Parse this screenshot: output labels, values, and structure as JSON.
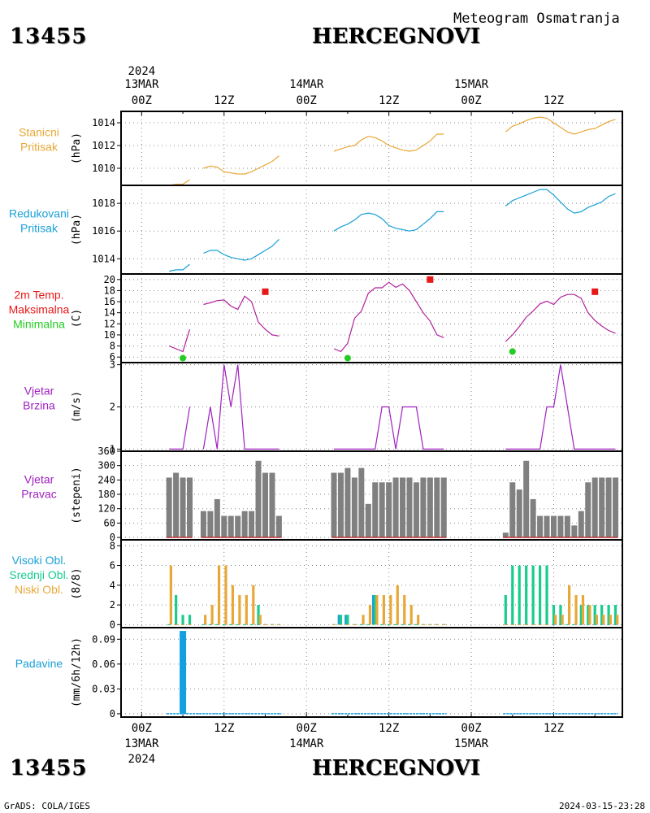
{
  "header": {
    "station_id": "13455",
    "station_name": "HERCEGNOVI",
    "meteogram_title": "Meteogram Osmatranja"
  },
  "footer": {
    "station_id": "13455",
    "station_name": "HERCEGNOVI",
    "credit": "GrADS: COLA/IGES",
    "timestamp": "2024-03-15-23:28"
  },
  "time_axis": {
    "year": "2024",
    "major": [
      {
        "date": "13MAR",
        "hour": "00Z",
        "t": 0
      },
      {
        "date": "14MAR",
        "hour": "00Z",
        "t": 24
      },
      {
        "date": "15MAR",
        "hour": "00Z",
        "t": 48
      }
    ],
    "minor": [
      {
        "hour": "12Z",
        "t": 12
      },
      {
        "hour": "12Z",
        "t": 36
      },
      {
        "hour": "12Z",
        "t": 60
      }
    ],
    "range_hours": [
      -3,
      70
    ]
  },
  "colors": {
    "station_pressure": "#e8a838",
    "reduced_pressure": "#1aa0d8",
    "temperature": "#b0209a",
    "tmax": "#e81818",
    "tmin": "#22cc22",
    "wind": "#a020c0",
    "wind_dir": "#808080",
    "high_cloud": "#1aa0d8",
    "mid_cloud": "#18cc8c",
    "low_cloud": "#e8a838",
    "precip": "#12a0e0",
    "label_orange": "#e8a838",
    "label_cyan": "#1aa0d8",
    "label_red": "#e81818",
    "label_green": "#22cc22",
    "label_purple": "#a020c0"
  },
  "panels": [
    {
      "id": "station_pressure",
      "labels": [
        {
          "text": "Stanicni",
          "color": "#e8a838"
        },
        {
          "text": "Pritisak",
          "color": "#e8a838"
        }
      ],
      "unit": "(hPa)"
    },
    {
      "id": "reduced_pressure",
      "labels": [
        {
          "text": "Redukovani",
          "color": "#1aa0d8"
        },
        {
          "text": "Pritisak",
          "color": "#1aa0d8"
        }
      ],
      "unit": "(hPa)"
    },
    {
      "id": "temperature",
      "labels": [
        {
          "text": "2m Temp.",
          "color": "#e81818"
        },
        {
          "text": "Maksimalna",
          "color": "#e81818"
        },
        {
          "text": "Minimalna",
          "color": "#22cc22"
        }
      ],
      "unit": "(C)"
    },
    {
      "id": "wind_speed",
      "labels": [
        {
          "text": "Vjetar",
          "color": "#a020c0"
        },
        {
          "text": "Brzina",
          "color": "#a020c0"
        }
      ],
      "unit": "(m/s)"
    },
    {
      "id": "wind_dir",
      "labels": [
        {
          "text": "Vjetar",
          "color": "#a020c0"
        },
        {
          "text": "Pravac",
          "color": "#a020c0"
        }
      ],
      "unit": "(stepeni)"
    },
    {
      "id": "clouds",
      "labels": [
        {
          "text": "Visoki Obl.",
          "color": "#1aa0d8"
        },
        {
          "text": "Srednji Obl.",
          "color": "#18cc8c"
        },
        {
          "text": "Niski Obl.",
          "color": "#e8a838"
        }
      ],
      "unit": "(8/8)"
    },
    {
      "id": "precip",
      "labels": [
        {
          "text": "Padavine",
          "color": "#1aa0d8"
        }
      ],
      "unit": "(mm/6h/12h)"
    }
  ],
  "chart_data": [
    {
      "type": "line",
      "panel": "station_pressure",
      "ylim": [
        1008.5,
        1015
      ],
      "yticks": [
        1010,
        1012,
        1014
      ],
      "x": [
        4,
        5,
        6,
        7,
        9,
        10,
        11,
        12,
        13,
        14,
        15,
        16,
        17,
        18,
        19,
        20,
        28,
        29,
        30,
        31,
        32,
        33,
        34,
        35,
        36,
        37,
        38,
        39,
        40,
        41,
        42,
        43,
        44,
        53,
        54,
        55,
        56,
        57,
        58,
        59,
        60,
        61,
        62,
        63,
        64,
        65,
        66,
        67,
        68,
        69
      ],
      "values": [
        1008.5,
        1008.6,
        1008.6,
        1009.0,
        1010.0,
        1010.2,
        1010.1,
        1009.7,
        1009.6,
        1009.5,
        1009.5,
        1009.7,
        1010.0,
        1010.3,
        1010.6,
        1011.1,
        1011.5,
        1011.7,
        1011.9,
        1012.0,
        1012.5,
        1012.8,
        1012.7,
        1012.4,
        1012.0,
        1011.8,
        1011.6,
        1011.5,
        1011.6,
        1012.0,
        1012.4,
        1013.0,
        1013.0,
        1013.2,
        1013.7,
        1013.9,
        1014.2,
        1014.4,
        1014.5,
        1014.4,
        1014.0,
        1013.6,
        1013.2,
        1013.0,
        1013.2,
        1013.4,
        1013.5,
        1013.8,
        1014.1,
        1014.3
      ]
    },
    {
      "type": "line",
      "panel": "reduced_pressure",
      "ylim": [
        1012.9,
        1019.3
      ],
      "yticks": [
        1014,
        1016,
        1018
      ],
      "x": [
        4,
        5,
        6,
        7,
        9,
        10,
        11,
        12,
        13,
        14,
        15,
        16,
        17,
        18,
        19,
        20,
        28,
        29,
        30,
        31,
        32,
        33,
        34,
        35,
        36,
        37,
        38,
        39,
        40,
        41,
        42,
        43,
        44,
        53,
        54,
        55,
        56,
        57,
        58,
        59,
        60,
        61,
        62,
        63,
        64,
        65,
        66,
        67,
        68,
        69
      ],
      "values": [
        1013.1,
        1013.2,
        1013.2,
        1013.6,
        1014.4,
        1014.6,
        1014.6,
        1014.3,
        1014.1,
        1014.0,
        1013.9,
        1014.0,
        1014.3,
        1014.6,
        1014.9,
        1015.4,
        1016.0,
        1016.3,
        1016.5,
        1016.8,
        1017.2,
        1017.3,
        1017.2,
        1016.9,
        1016.4,
        1016.2,
        1016.1,
        1016.0,
        1016.1,
        1016.5,
        1016.9,
        1017.4,
        1017.4,
        1017.8,
        1018.2,
        1018.4,
        1018.6,
        1018.8,
        1019.0,
        1019.0,
        1018.6,
        1018.1,
        1017.6,
        1017.3,
        1017.4,
        1017.7,
        1017.9,
        1018.1,
        1018.5,
        1018.7
      ]
    },
    {
      "type": "line",
      "panel": "temperature",
      "ylim": [
        5,
        21
      ],
      "yticks": [
        6,
        8,
        10,
        12,
        14,
        16,
        18,
        20
      ],
      "x": [
        4,
        5,
        6,
        7,
        9,
        10,
        11,
        12,
        13,
        14,
        15,
        16,
        17,
        18,
        19,
        20,
        28,
        29,
        30,
        31,
        32,
        33,
        34,
        35,
        36,
        37,
        38,
        39,
        40,
        41,
        42,
        43,
        44,
        53,
        54,
        55,
        56,
        57,
        58,
        59,
        60,
        61,
        62,
        63,
        64,
        65,
        66,
        67,
        68,
        69
      ],
      "values": [
        8.0,
        7.5,
        7.0,
        11.0,
        15.5,
        15.8,
        16.2,
        16.3,
        15.2,
        14.6,
        17.0,
        16.0,
        12.3,
        11.0,
        10.0,
        9.8,
        7.5,
        7.0,
        8.5,
        13.0,
        14.3,
        17.5,
        18.5,
        18.5,
        19.5,
        18.6,
        19.2,
        18.0,
        16.0,
        14.0,
        12.5,
        10.0,
        9.5,
        8.8,
        10.0,
        11.5,
        13.2,
        14.3,
        15.6,
        16.1,
        15.5,
        16.8,
        17.3,
        17.3,
        16.6,
        14.0,
        12.6,
        11.6,
        10.8,
        10.3
      ],
      "tmax": [
        {
          "x": 18,
          "value": 17.8
        },
        {
          "x": 42,
          "value": 20.0
        },
        {
          "x": 66,
          "value": 17.8
        }
      ],
      "tmin": [
        {
          "x": 6,
          "value": 5.8
        },
        {
          "x": 30,
          "value": 5.8
        },
        {
          "x": 54,
          "value": 7.0
        }
      ]
    },
    {
      "type": "line",
      "panel": "wind_speed",
      "ylim": [
        0.95,
        3.05
      ],
      "yticks": [
        1,
        2,
        3
      ],
      "x": [
        4,
        5,
        6,
        7,
        9,
        10,
        11,
        12,
        13,
        14,
        15,
        16,
        17,
        18,
        19,
        20,
        28,
        29,
        30,
        31,
        32,
        33,
        34,
        35,
        36,
        37,
        38,
        39,
        40,
        41,
        42,
        43,
        44,
        53,
        54,
        55,
        56,
        57,
        58,
        59,
        60,
        61,
        62,
        63,
        64,
        65,
        66,
        67,
        68,
        69
      ],
      "values": [
        1,
        1,
        1,
        2,
        1,
        2,
        1,
        3,
        2,
        3,
        1,
        1,
        1,
        1,
        1,
        1,
        1,
        1,
        1,
        1,
        1,
        1,
        1,
        2,
        2,
        1,
        2,
        2,
        2,
        1,
        1,
        1,
        1,
        1,
        1,
        1,
        1,
        1,
        1,
        2,
        2,
        3,
        2,
        1,
        1,
        1,
        1,
        1,
        1,
        1
      ]
    },
    {
      "type": "bar",
      "panel": "wind_dir",
      "ylim": [
        -10,
        360
      ],
      "yticks": [
        0,
        60,
        120,
        180,
        240,
        300,
        360
      ],
      "x": [
        4,
        5,
        6,
        7,
        9,
        10,
        11,
        12,
        13,
        14,
        15,
        16,
        17,
        18,
        19,
        20,
        28,
        29,
        30,
        31,
        32,
        33,
        34,
        35,
        36,
        37,
        38,
        39,
        40,
        41,
        42,
        43,
        44,
        53,
        54,
        55,
        56,
        57,
        58,
        59,
        60,
        61,
        62,
        63,
        64,
        65,
        66,
        67,
        68,
        69
      ],
      "values": [
        250,
        270,
        250,
        250,
        110,
        110,
        160,
        90,
        90,
        90,
        110,
        110,
        320,
        270,
        270,
        90,
        270,
        270,
        290,
        250,
        290,
        140,
        230,
        230,
        230,
        250,
        250,
        250,
        230,
        250,
        250,
        250,
        250,
        20,
        230,
        200,
        320,
        160,
        90,
        90,
        90,
        90,
        90,
        50,
        110,
        230,
        250,
        250,
        250,
        250
      ]
    },
    {
      "type": "bar",
      "panel": "clouds",
      "ylim": [
        -0.3,
        8.6
      ],
      "yticks": [
        0,
        2,
        4,
        6,
        8
      ],
      "x": [
        4,
        5,
        6,
        7,
        9,
        10,
        11,
        12,
        13,
        14,
        15,
        16,
        17,
        18,
        19,
        20,
        28,
        29,
        30,
        31,
        32,
        33,
        34,
        35,
        36,
        37,
        38,
        39,
        40,
        41,
        42,
        43,
        44,
        53,
        54,
        55,
        56,
        57,
        58,
        59,
        60,
        61,
        62,
        63,
        64,
        65,
        66,
        67,
        68,
        69
      ],
      "series": [
        {
          "name": "Visoki Obl.",
          "values": [
            0,
            0,
            0,
            0,
            0,
            0,
            0,
            0,
            0,
            0,
            0,
            0,
            0,
            0,
            0,
            0,
            0,
            1,
            1,
            0,
            0,
            0,
            3,
            0,
            0,
            0,
            0,
            0,
            0,
            0,
            0,
            0,
            0,
            0,
            0,
            0,
            0,
            0,
            0,
            0,
            0,
            0,
            0,
            0,
            0,
            0,
            0,
            0,
            0,
            0
          ]
        },
        {
          "name": "Srednji Obl.",
          "values": [
            0,
            3,
            1,
            1,
            0,
            0,
            0,
            0,
            0,
            0,
            0,
            0,
            2,
            0,
            0,
            0,
            0,
            1,
            1,
            0,
            0,
            0,
            3,
            0,
            0,
            0,
            0,
            0,
            0,
            0,
            0,
            0,
            0,
            3,
            6,
            6,
            6,
            6,
            6,
            6,
            2,
            2,
            0,
            0,
            2,
            2,
            2,
            2,
            2,
            2
          ]
        },
        {
          "name": "Niski Obl.",
          "values": [
            6,
            0,
            0,
            0,
            1,
            2,
            6,
            6,
            4,
            3,
            3,
            4,
            1,
            0,
            0,
            0,
            0,
            0,
            0,
            0,
            1,
            2,
            3,
            3,
            3,
            4,
            3,
            2,
            1,
            0,
            0,
            0,
            0,
            0,
            0,
            0,
            0,
            0,
            0,
            0,
            1,
            1,
            4,
            3,
            3,
            2,
            1,
            1,
            1,
            1
          ]
        }
      ]
    },
    {
      "type": "bar",
      "panel": "precip",
      "ylim": [
        -0.004,
        0.104
      ],
      "yticks": [
        0,
        0.03,
        0.06,
        0.09
      ],
      "ytick_labels": [
        "0",
        "0.03",
        "0.06",
        "0.09"
      ],
      "x": [
        6
      ],
      "values": [
        0.1
      ],
      "baseline_ranges": [
        [
          4,
          20
        ],
        [
          28,
          44
        ],
        [
          53,
          69
        ]
      ]
    }
  ]
}
